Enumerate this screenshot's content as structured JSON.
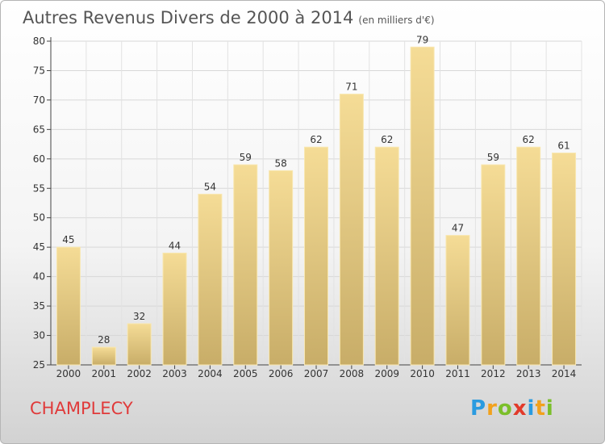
{
  "title": {
    "main": "Autres Revenus Divers de 2000 à 2014",
    "unit": "(en milliers d'€)"
  },
  "commune": "CHAMPLECY",
  "logo": {
    "letters": [
      {
        "ch": "P",
        "color": "#2a9be0"
      },
      {
        "ch": "r",
        "color": "#f2a11c"
      },
      {
        "ch": "o",
        "color": "#7bbf2a"
      },
      {
        "ch": "x",
        "color": "#e23a2a"
      },
      {
        "ch": "i",
        "color": "#2a9be0"
      },
      {
        "ch": "t",
        "color": "#f2a11c"
      },
      {
        "ch": "i",
        "color": "#7bbf2a"
      }
    ]
  },
  "chart_data": {
    "type": "bar",
    "title": "Autres Revenus Divers de 2000 à 2014",
    "categories": [
      "2000",
      "2001",
      "2002",
      "2003",
      "2004",
      "2005",
      "2006",
      "2007",
      "2008",
      "2009",
      "2010",
      "2011",
      "2012",
      "2013",
      "2014"
    ],
    "values": [
      45,
      28,
      32,
      44,
      54,
      59,
      58,
      62,
      71,
      62,
      79,
      47,
      59,
      62,
      61
    ],
    "ylim": [
      25,
      80
    ],
    "yticks": [
      25,
      30,
      35,
      40,
      45,
      50,
      55,
      60,
      65,
      70,
      75,
      80
    ],
    "grid": true,
    "bar_color_top": "#f5dc96",
    "bar_color_bottom": "#c8ad68"
  }
}
